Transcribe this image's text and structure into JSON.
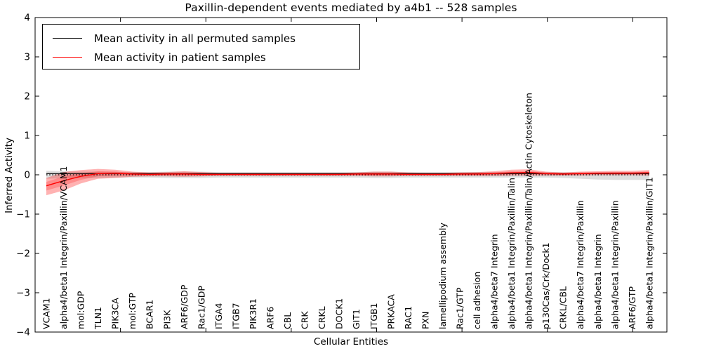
{
  "title": "Paxillin-dependent events mediated by a4b1 -- 528 samples",
  "legend": {
    "items": [
      {
        "label": "Mean activity in all permuted samples",
        "color": "#000000"
      },
      {
        "label": "Mean activity in patient samples",
        "color": "#ff0000"
      }
    ],
    "position": "upper left"
  },
  "chart_data": {
    "type": "line",
    "title": "Paxillin-dependent events mediated by a4b1 -- 528 samples",
    "xlabel": "Cellular Entities",
    "ylabel": "Inferred Activity",
    "ylim": [
      -4,
      4
    ],
    "xlim": [
      0,
      37
    ],
    "yticks": [
      4,
      3,
      2,
      1,
      0,
      -1,
      -2,
      -3,
      -4
    ],
    "ytick_labels": [
      "4",
      "3",
      "2",
      "1",
      "0",
      "−1",
      "−2",
      "−3",
      "−4"
    ],
    "x_numeric_ticks": [
      5,
      10,
      15,
      20,
      25,
      30,
      35
    ],
    "grid": false,
    "zero_reference_line": 0,
    "categories": [
      "VCAM1",
      "alpha4/beta1 Integrin/Paxillin/VCAM1",
      "mol:GDP",
      "TLN1",
      "PIK3CA",
      "mol:GTP",
      "BCAR1",
      "PI3K",
      "ARF6/GDP",
      "Rac1/GDP",
      "ITGA4",
      "ITGB7",
      "PIK3R1",
      "ARF6",
      "CBL",
      "CRK",
      "CRKL",
      "DOCK1",
      "GIT1",
      "ITGB1",
      "PRKACA",
      "RAC1",
      "PXN",
      "lamellipodium assembly",
      "Rac1/GTP",
      "cell adhesion",
      "alpha4/beta7 Integrin",
      "alpha4/beta1 Integrin/Paxillin/Talin",
      "alpha4/beta1 Integrin/Paxillin/Talin/Actin Cytoskeleton",
      "p130Cas/Crk/Dock1",
      "CRKL/CBL",
      "alpha4/beta7 Integrin/Paxillin",
      "alpha4/beta1 Integrin",
      "alpha4/beta1 Integrin/Paxillin",
      "ARF6/GTP",
      "alpha4/beta1 Integrin/Paxillin/GIT1"
    ],
    "series": [
      {
        "name": "Mean activity in all permuted samples",
        "color": "#000000",
        "band_color": "#d3d3d3",
        "values": [
          0.03,
          0.03,
          0.03,
          0.03,
          0.03,
          0.03,
          0.03,
          0.03,
          0.03,
          0.03,
          0.03,
          0.03,
          0.03,
          0.03,
          0.03,
          0.03,
          0.03,
          0.03,
          0.03,
          0.03,
          0.03,
          0.03,
          0.03,
          0.03,
          0.03,
          0.03,
          0.03,
          0.03,
          0.03,
          0.03,
          0.03,
          0.03,
          0.03,
          0.03,
          0.03,
          0.03
        ],
        "band_upper": [
          0.1,
          0.09,
          0.08,
          0.08,
          0.07,
          0.07,
          0.07,
          0.08,
          0.08,
          0.08,
          0.07,
          0.07,
          0.07,
          0.07,
          0.07,
          0.07,
          0.07,
          0.07,
          0.07,
          0.08,
          0.08,
          0.07,
          0.07,
          0.07,
          0.07,
          0.07,
          0.07,
          0.07,
          0.07,
          0.07,
          0.06,
          0.06,
          0.06,
          0.07,
          0.07,
          0.07
        ],
        "band_lower": [
          -0.1,
          -0.09,
          -0.08,
          -0.08,
          -0.07,
          -0.07,
          -0.07,
          -0.08,
          -0.08,
          -0.08,
          -0.07,
          -0.07,
          -0.07,
          -0.07,
          -0.07,
          -0.07,
          -0.07,
          -0.07,
          -0.07,
          -0.08,
          -0.08,
          -0.07,
          -0.07,
          -0.07,
          -0.07,
          -0.07,
          -0.07,
          -0.07,
          -0.07,
          -0.07,
          -0.08,
          -0.1,
          -0.12,
          -0.13,
          -0.13,
          -0.13
        ]
      },
      {
        "name": "Mean activity in patient samples",
        "color": "#ff0000",
        "band_color": "#ff0000",
        "values": [
          -0.28,
          -0.15,
          -0.04,
          0.03,
          0.04,
          0.02,
          0.01,
          0.02,
          0.02,
          0.01,
          0.01,
          0.01,
          0.01,
          0.01,
          0.01,
          0.01,
          0.01,
          0.01,
          0.02,
          0.02,
          0.02,
          0.01,
          0.01,
          0.01,
          0.02,
          0.02,
          0.03,
          0.05,
          0.06,
          0.03,
          0.02,
          0.03,
          0.04,
          0.04,
          0.04,
          0.05
        ],
        "band_upper": [
          -0.08,
          0.07,
          0.12,
          0.15,
          0.13,
          0.08,
          0.06,
          0.07,
          0.09,
          0.07,
          0.05,
          0.05,
          0.05,
          0.05,
          0.05,
          0.05,
          0.05,
          0.05,
          0.06,
          0.08,
          0.08,
          0.06,
          0.05,
          0.05,
          0.06,
          0.07,
          0.09,
          0.13,
          0.14,
          0.08,
          0.06,
          0.08,
          0.09,
          0.1,
          0.1,
          0.12
        ],
        "band_lower": [
          -0.52,
          -0.4,
          -0.22,
          -0.1,
          -0.08,
          -0.05,
          -0.04,
          -0.04,
          -0.05,
          -0.04,
          -0.03,
          -0.03,
          -0.03,
          -0.03,
          -0.03,
          -0.03,
          -0.03,
          -0.03,
          -0.03,
          -0.04,
          -0.04,
          -0.03,
          -0.03,
          -0.03,
          -0.03,
          -0.03,
          -0.03,
          -0.02,
          -0.02,
          -0.02,
          -0.02,
          -0.02,
          -0.01,
          -0.01,
          -0.01,
          -0.02
        ]
      }
    ]
  }
}
